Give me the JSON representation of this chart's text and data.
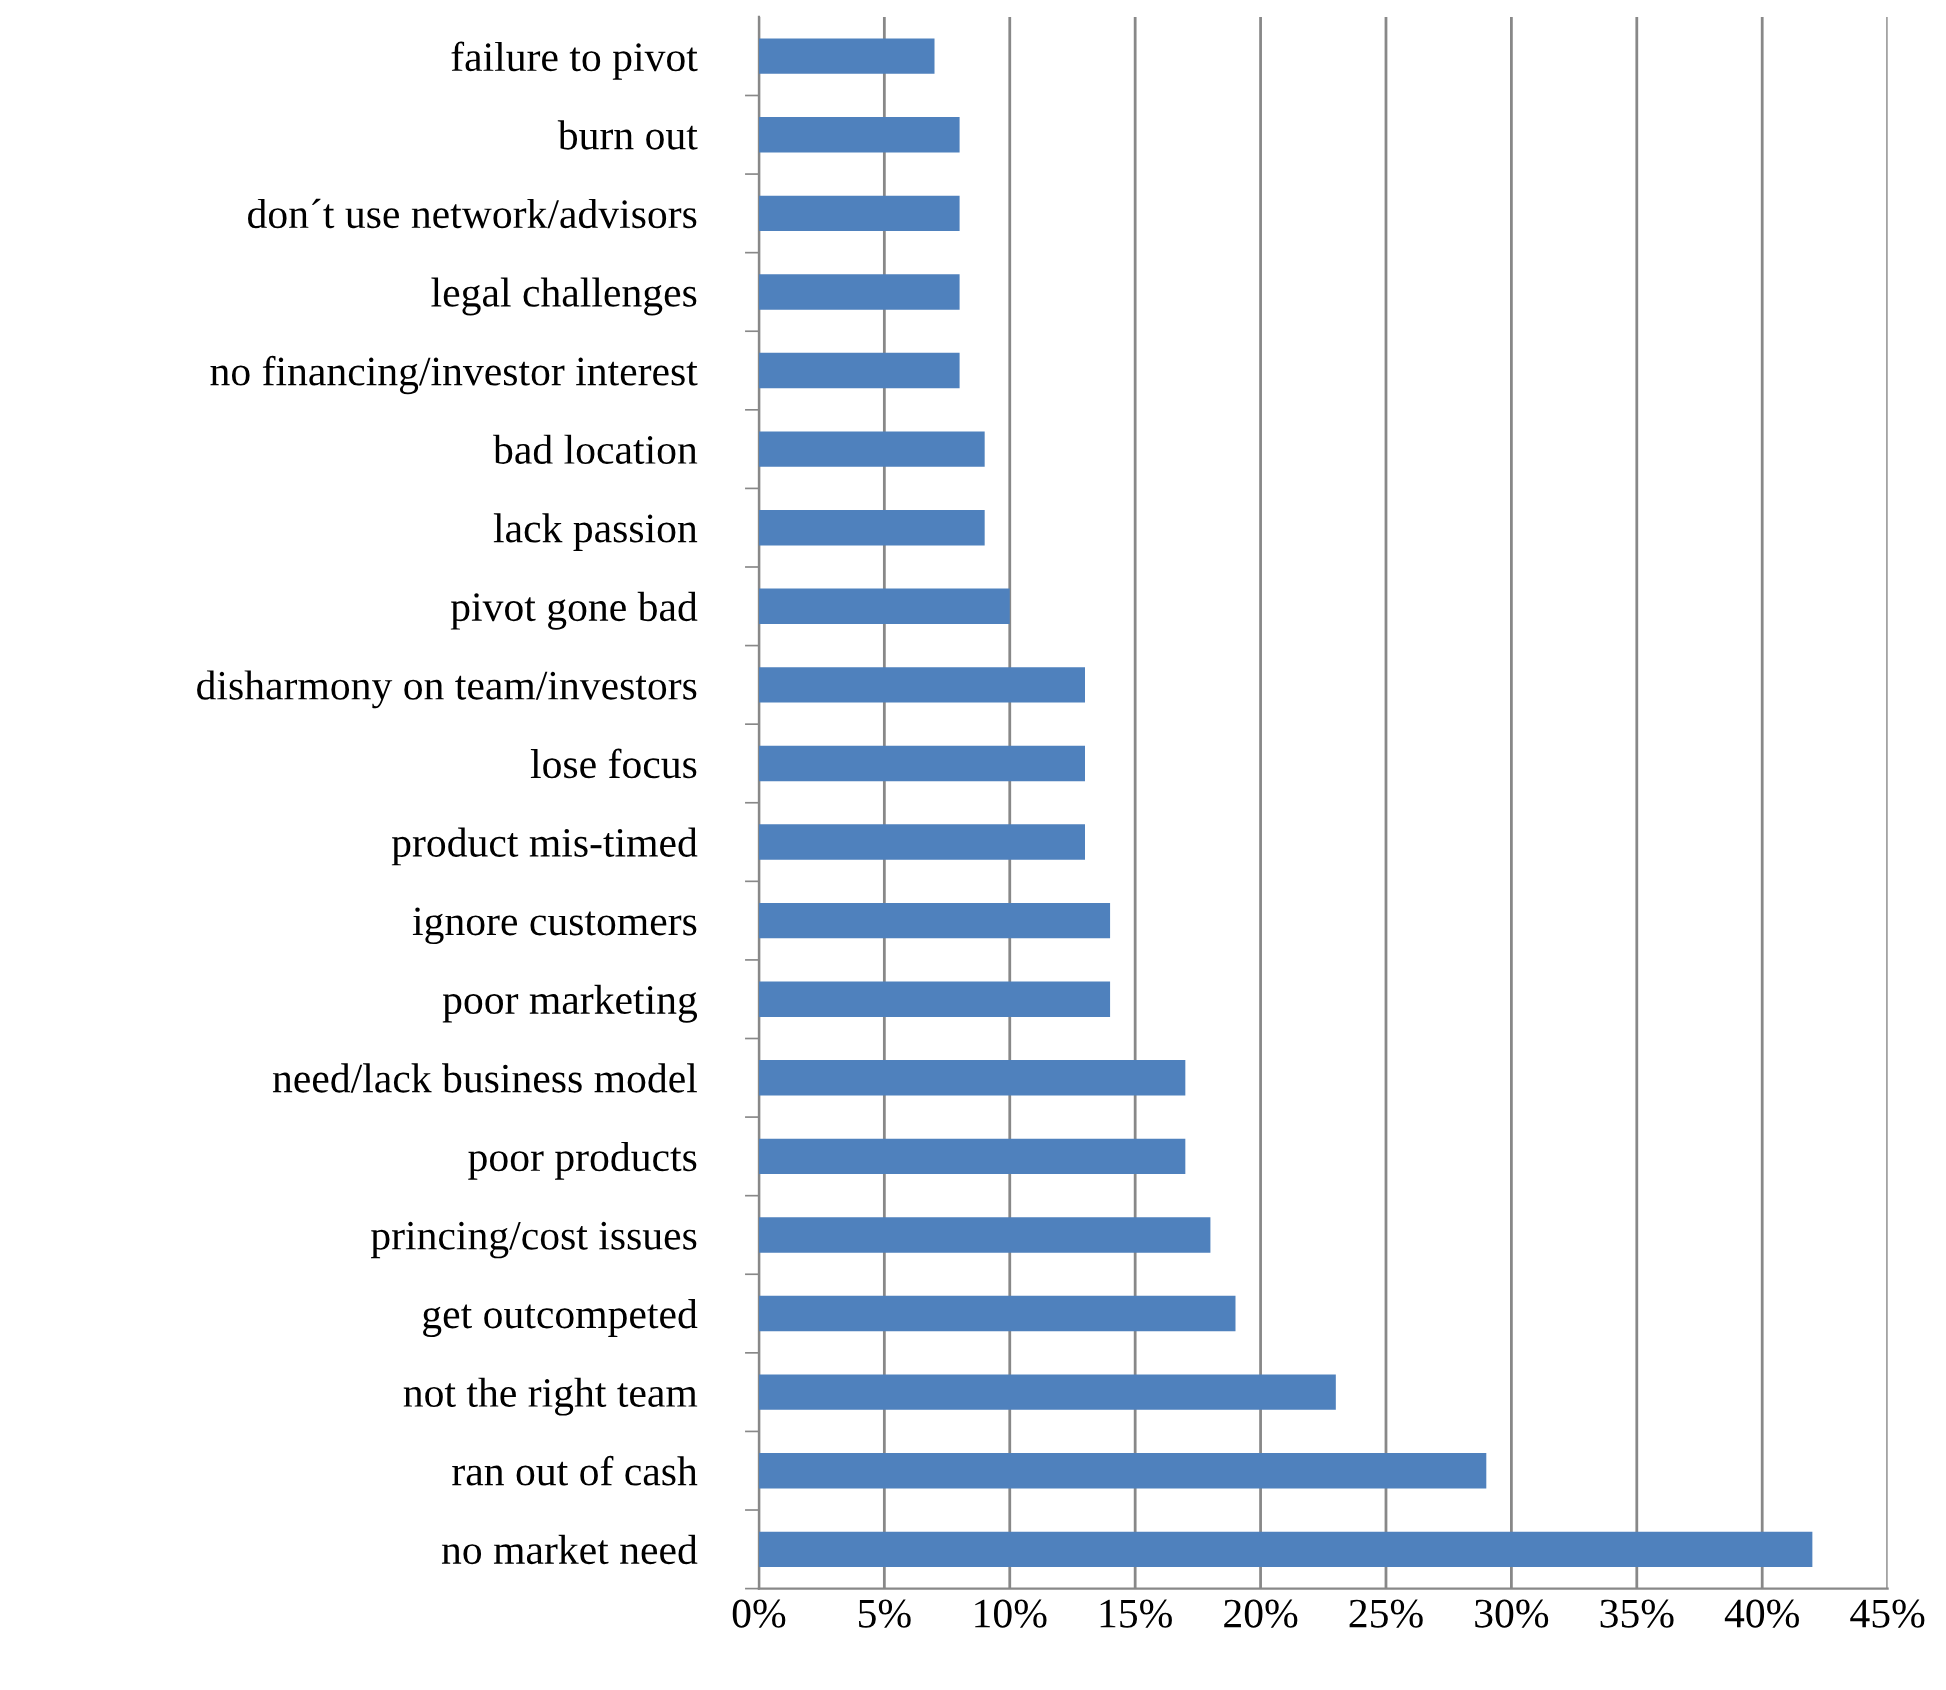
{
  "chart_data": {
    "type": "bar",
    "orientation": "horizontal",
    "categories": [
      "failure to pivot",
      "burn out",
      "don´t use network/advisors",
      "legal challenges",
      "no financing/investor interest",
      "bad location",
      "lack passion",
      "pivot gone bad",
      "disharmony on team/investors",
      "lose focus",
      "product mis-timed",
      "ignore customers",
      "poor marketing",
      "need/lack business model",
      "poor products",
      "princing/cost issues",
      "get outcompeted",
      "not the right team",
      "ran out of cash",
      "no market need"
    ],
    "values": [
      7,
      8,
      8,
      8,
      8,
      9,
      9,
      10,
      13,
      13,
      13,
      14,
      14,
      17,
      17,
      18,
      19,
      23,
      29,
      42
    ],
    "color": "#4f81bd",
    "xlim": [
      0,
      45
    ],
    "xticks": [
      {
        "value": 0,
        "label": "0%"
      },
      {
        "value": 5,
        "label": "5%"
      },
      {
        "value": 10,
        "label": "10%"
      },
      {
        "value": 15,
        "label": "15%"
      },
      {
        "value": 20,
        "label": "20%"
      },
      {
        "value": 25,
        "label": "25%"
      },
      {
        "value": 30,
        "label": "30%"
      },
      {
        "value": 35,
        "label": "35%"
      },
      {
        "value": 40,
        "label": "40%"
      },
      {
        "value": 45,
        "label": "45%"
      }
    ],
    "grid": "x"
  }
}
